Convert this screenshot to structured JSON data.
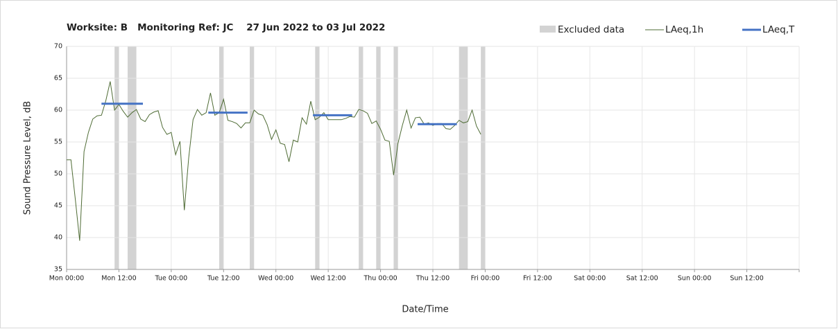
{
  "chart_data": {
    "type": "line",
    "title": "Worksite: B   Monitoring Ref: JC    27 Jun 2022 to 03 Jul 2022",
    "xlabel": "Date/Time",
    "ylabel": "Sound Pressure Level, dB",
    "xlim": [
      0,
      168
    ],
    "ylim": [
      35,
      70
    ],
    "yticks": [
      35,
      40,
      45,
      50,
      55,
      60,
      65,
      70
    ],
    "xticks": [
      {
        "value": 0,
        "label": "Mon 00:00"
      },
      {
        "value": 12,
        "label": "Mon 12:00"
      },
      {
        "value": 24,
        "label": "Tue 00:00"
      },
      {
        "value": 36,
        "label": "Tue 12:00"
      },
      {
        "value": 48,
        "label": "Wed 00:00"
      },
      {
        "value": 60,
        "label": "Wed 12:00"
      },
      {
        "value": 72,
        "label": "Thu 00:00"
      },
      {
        "value": 84,
        "label": "Thu 12:00"
      },
      {
        "value": 96,
        "label": "Fri 00:00"
      },
      {
        "value": 108,
        "label": "Fri 12:00"
      },
      {
        "value": 120,
        "label": "Sat 00:00"
      },
      {
        "value": 132,
        "label": "Sat 12:00"
      },
      {
        "value": 144,
        "label": "Sun 00:00"
      },
      {
        "value": 156,
        "label": "Sun 12:00"
      },
      {
        "value": 168,
        "label": ""
      }
    ],
    "grid": true,
    "excluded": {
      "name": "Excluded data",
      "color": "#d3d3d3",
      "ranges": [
        [
          11,
          12
        ],
        [
          14,
          16
        ],
        [
          35,
          36
        ],
        [
          42,
          43
        ],
        [
          57,
          58
        ],
        [
          67,
          68
        ],
        [
          71,
          72
        ],
        [
          75,
          76
        ],
        [
          90,
          92
        ],
        [
          95,
          96
        ]
      ]
    },
    "series": [
      {
        "name": "LAeq,1h",
        "color": "#4e6b34",
        "x": [
          0,
          1,
          2,
          3,
          4,
          5,
          6,
          7,
          8,
          9,
          10,
          11,
          12,
          13,
          14,
          15,
          16,
          17,
          18,
          19,
          20,
          21,
          22,
          23,
          24,
          25,
          26,
          27,
          28,
          29,
          30,
          31,
          32,
          33,
          34,
          35,
          36,
          37,
          38,
          39,
          40,
          41,
          42,
          43,
          44,
          45,
          46,
          47,
          48,
          49,
          50,
          51,
          52,
          53,
          54,
          55,
          56,
          57,
          58,
          59,
          60,
          61,
          62,
          63,
          64,
          65,
          66,
          67,
          68,
          69,
          70,
          71,
          72,
          73,
          74,
          75,
          76,
          77,
          78,
          79,
          80,
          81,
          82,
          83,
          84,
          85,
          86,
          87,
          88,
          89,
          90,
          91,
          92,
          93,
          94,
          95
        ],
        "values": [
          52.2,
          52.2,
          46,
          39.5,
          53.5,
          56.5,
          58.6,
          59.1,
          59.2,
          61.5,
          64.5,
          60,
          60.9,
          59.8,
          58.9,
          59.6,
          60.1,
          58.6,
          58.2,
          59.3,
          59.7,
          59.9,
          57.3,
          56.2,
          56.5,
          53,
          55.1,
          44.3,
          52.5,
          58.5,
          60.1,
          59.2,
          59.6,
          62.7,
          59.2,
          59.6,
          61.7,
          58.4,
          58.2,
          57.9,
          57.2,
          58,
          58,
          60,
          59.4,
          59.2,
          57.7,
          55.4,
          56.9,
          54.8,
          54.6,
          51.9,
          55.3,
          55,
          58.8,
          57.8,
          61.4,
          58.5,
          58.9,
          59.6,
          58.5,
          58.5,
          58.5,
          58.5,
          58.7,
          59,
          58.9,
          60.1,
          59.9,
          59.5,
          57.9,
          58.3,
          57,
          55.3,
          55.1,
          49.8,
          54.8,
          57.6,
          60,
          57.2,
          58.8,
          58.9,
          57.8,
          58,
          57.6,
          57.9,
          57.9,
          57.1,
          57,
          57.6,
          58.4,
          58,
          58.2,
          60,
          57.5,
          56.2
        ]
      },
      {
        "name": "LAeq,T",
        "color": "#4472c4",
        "segments": [
          {
            "x": [
              8,
              17.5
            ],
            "value": 61
          },
          {
            "x": [
              32.5,
              41.5
            ],
            "value": 59.6
          },
          {
            "x": [
              56.5,
              65.5
            ],
            "value": 59.2
          },
          {
            "x": [
              80.5,
              89.5
            ],
            "value": 57.8
          }
        ]
      }
    ]
  }
}
